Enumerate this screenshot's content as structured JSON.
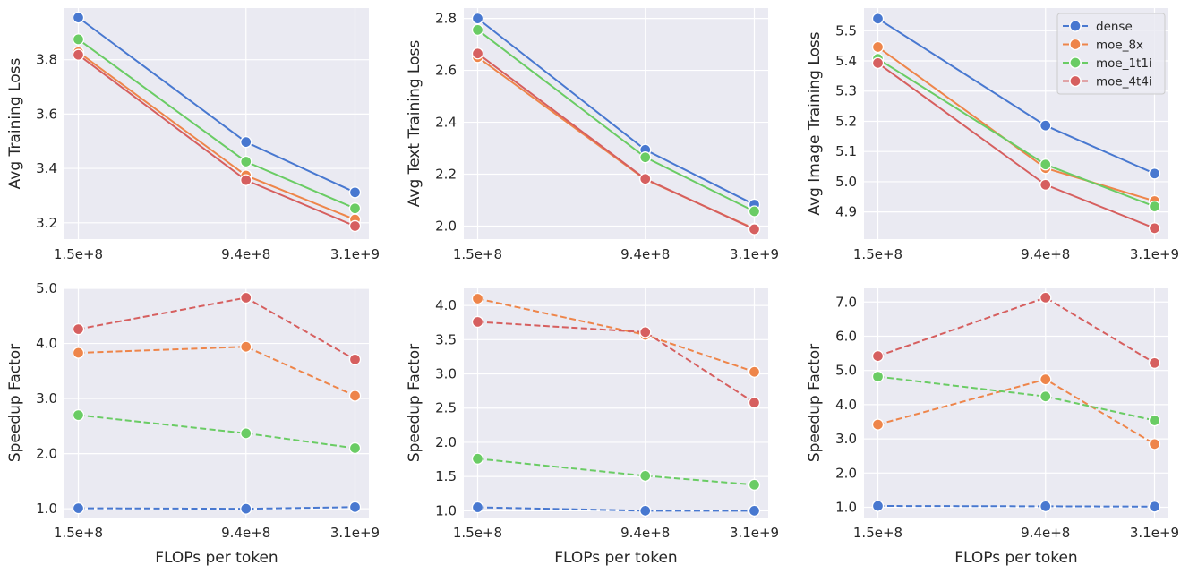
{
  "chart_data": {
    "type": "line",
    "x": [
      150000000,
      940000000,
      3100000000
    ],
    "x_tick_labels": [
      "1.5e+8",
      "9.4e+8",
      "3.1e+9"
    ],
    "x_scale": "log",
    "grid": true,
    "legend_placement": "top-right (first row, third panel)",
    "series_colors": {
      "dense": "#4878d0",
      "moe_8x": "#ee854a",
      "moe_1t1i": "#6acc64",
      "moe_4t4i": "#d65f5f"
    },
    "legend": [
      "dense",
      "moe_8x",
      "moe_1t1i",
      "moe_4t4i"
    ],
    "panels": [
      {
        "row": 0,
        "col": 0,
        "ylabel": "Avg Training Loss",
        "xlabel": "",
        "ylim": [
          3.14,
          3.99
        ],
        "yticks": [
          3.2,
          3.4,
          3.6,
          3.8
        ],
        "ytick_labels": [
          "3.2",
          "3.4",
          "3.6",
          "3.8"
        ],
        "line_style": "solid",
        "series": [
          {
            "name": "dense",
            "values": [
              3.955,
              3.497,
              3.312
            ]
          },
          {
            "name": "moe_8x",
            "values": [
              3.828,
              3.374,
              3.212
            ]
          },
          {
            "name": "moe_1t1i",
            "values": [
              3.875,
              3.425,
              3.253
            ]
          },
          {
            "name": "moe_4t4i",
            "values": [
              3.818,
              3.357,
              3.188
            ]
          }
        ]
      },
      {
        "row": 0,
        "col": 1,
        "ylabel": "Avg Text Training Loss",
        "xlabel": "",
        "ylim": [
          1.95,
          2.84
        ],
        "yticks": [
          2.0,
          2.2,
          2.4,
          2.6,
          2.8
        ],
        "ytick_labels": [
          "2.0",
          "2.2",
          "2.4",
          "2.6",
          "2.8"
        ],
        "line_style": "solid",
        "series": [
          {
            "name": "dense",
            "values": [
              2.8,
              2.294,
              2.083
            ]
          },
          {
            "name": "moe_8x",
            "values": [
              2.651,
              2.18,
              1.99
            ]
          },
          {
            "name": "moe_1t1i",
            "values": [
              2.756,
              2.265,
              2.057
            ]
          },
          {
            "name": "moe_4t4i",
            "values": [
              2.665,
              2.182,
              1.988
            ]
          }
        ]
      },
      {
        "row": 0,
        "col": 2,
        "ylabel": "Avg Image Training Loss",
        "xlabel": "",
        "ylim": [
          4.81,
          5.575
        ],
        "yticks": [
          4.9,
          5.0,
          5.1,
          5.2,
          5.3,
          5.4,
          5.5
        ],
        "ytick_labels": [
          "4.9",
          "5.0",
          "5.1",
          "5.2",
          "5.3",
          "5.4",
          "5.5"
        ],
        "line_style": "solid",
        "show_legend": true,
        "series": [
          {
            "name": "dense",
            "values": [
              5.54,
              5.186,
              5.027
            ]
          },
          {
            "name": "moe_8x",
            "values": [
              5.446,
              5.045,
              4.936
            ]
          },
          {
            "name": "moe_1t1i",
            "values": [
              5.407,
              5.057,
              4.918
            ]
          },
          {
            "name": "moe_4t4i",
            "values": [
              5.393,
              4.99,
              4.846
            ]
          }
        ]
      },
      {
        "row": 1,
        "col": 0,
        "ylabel": "Speedup Factor",
        "xlabel": "FLOPs per token",
        "ylim": [
          0.84,
          5.0
        ],
        "yticks": [
          1.0,
          2.0,
          3.0,
          4.0,
          5.0
        ],
        "ytick_labels": [
          "1.0",
          "2.0",
          "3.0",
          "4.0",
          "5.0"
        ],
        "line_style": "dashed",
        "series": [
          {
            "name": "dense",
            "values": [
              1.01,
              1.0,
              1.03
            ]
          },
          {
            "name": "moe_8x",
            "values": [
              3.83,
              3.94,
              3.05
            ]
          },
          {
            "name": "moe_1t1i",
            "values": [
              2.7,
              2.37,
              2.1
            ]
          },
          {
            "name": "moe_4t4i",
            "values": [
              4.26,
              4.83,
              3.71
            ]
          }
        ]
      },
      {
        "row": 1,
        "col": 1,
        "ylabel": "Speedup Factor",
        "xlabel": "FLOPs per token",
        "ylim": [
          0.9,
          4.25
        ],
        "yticks": [
          1.0,
          1.5,
          2.0,
          2.5,
          3.0,
          3.5,
          4.0
        ],
        "ytick_labels": [
          "1.0",
          "1.5",
          "2.0",
          "2.5",
          "3.0",
          "3.5",
          "4.0"
        ],
        "line_style": "dashed",
        "series": [
          {
            "name": "dense",
            "values": [
              1.05,
              1.0,
              1.0
            ]
          },
          {
            "name": "moe_8x",
            "values": [
              4.1,
              3.57,
              3.03
            ]
          },
          {
            "name": "moe_1t1i",
            "values": [
              1.76,
              1.51,
              1.38
            ]
          },
          {
            "name": "moe_4t4i",
            "values": [
              3.76,
              3.61,
              2.58
            ]
          }
        ]
      },
      {
        "row": 1,
        "col": 2,
        "ylabel": "Speedup Factor",
        "xlabel": "FLOPs per token",
        "ylim": [
          0.7,
          7.4
        ],
        "yticks": [
          1.0,
          2.0,
          3.0,
          4.0,
          5.0,
          6.0,
          7.0
        ],
        "ytick_labels": [
          "1.0",
          "2.0",
          "3.0",
          "4.0",
          "5.0",
          "6.0",
          "7.0"
        ],
        "line_style": "dashed",
        "series": [
          {
            "name": "dense",
            "values": [
              1.04,
              1.03,
              1.02
            ]
          },
          {
            "name": "moe_8x",
            "values": [
              3.42,
              4.74,
              2.85
            ]
          },
          {
            "name": "moe_1t1i",
            "values": [
              4.82,
              4.24,
              3.54
            ]
          },
          {
            "name": "moe_4t4i",
            "values": [
              5.42,
              7.13,
              5.22
            ]
          }
        ]
      }
    ]
  }
}
